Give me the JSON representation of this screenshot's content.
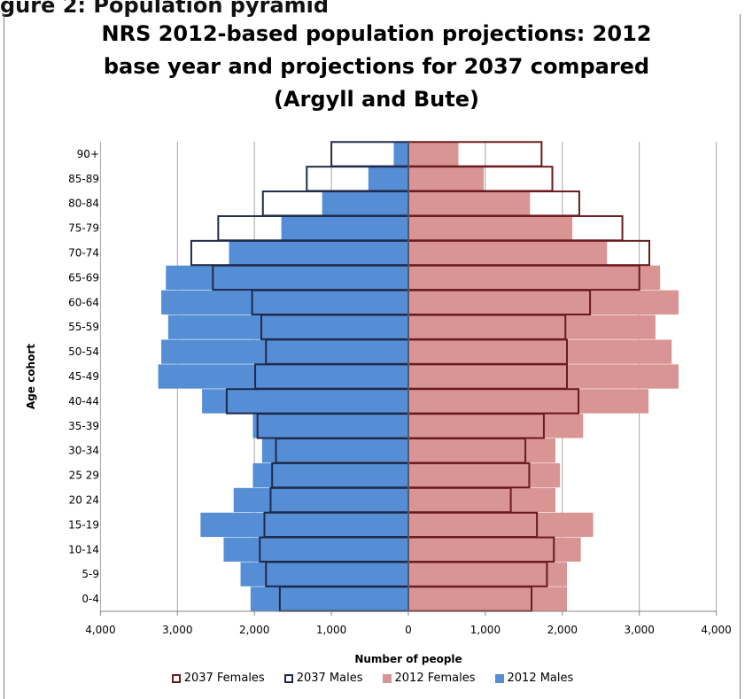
{
  "page": {
    "cut_heading": "gure 2: Population pyramid"
  },
  "chart_data": {
    "type": "bar",
    "orientation": "horizontal-pyramid",
    "title_lines": [
      "NRS 2012-based population projections: 2012",
      "base year and projections for 2037 compared",
      "(Argyll and Bute)"
    ],
    "xlabel": "Number of people",
    "ylabel": "Age cohort",
    "xlim": [
      -4000,
      4000
    ],
    "x_ticks": [
      -4000,
      -3000,
      -2000,
      -1000,
      0,
      1000,
      2000,
      3000,
      4000
    ],
    "x_tick_labels": [
      "4,000",
      "3,000",
      "2,000",
      "1,000",
      "0",
      "1,000",
      "2,000",
      "3,000",
      "4,000"
    ],
    "grid": "vertical",
    "legend_position": "bottom",
    "categories": [
      "0-4",
      "5-9",
      "10-14",
      "15-19",
      "20-24",
      "25-29",
      "30-34",
      "35-39",
      "40-44",
      "45-49",
      "50-54",
      "55-59",
      "60-64",
      "65-69",
      "70-74",
      "75-79",
      "80-84",
      "85-89",
      "90+"
    ],
    "category_labels": [
      "0-4",
      "5-9",
      "10-14",
      "15-19",
      "20 24",
      "25 29",
      "30-34",
      "35-39",
      "40-44",
      "45-49",
      "50-54",
      "55-59",
      "60-64",
      "65-69",
      "70-74",
      "75-79",
      "80-84",
      "85-89",
      "90+"
    ],
    "series": [
      {
        "name": "2037 Females",
        "side": "right",
        "style": "outline",
        "color": "#6b1a1f",
        "values": [
          1600,
          1800,
          1890,
          1670,
          1330,
          1570,
          1520,
          1760,
          2210,
          2060,
          2060,
          2040,
          2360,
          3000,
          3130,
          2780,
          2220,
          1870,
          1730
        ]
      },
      {
        "name": "2037 Males",
        "side": "left",
        "style": "outline",
        "color": "#1f2a4a",
        "values": [
          1670,
          1850,
          1930,
          1870,
          1790,
          1770,
          1720,
          1960,
          2360,
          1990,
          1850,
          1910,
          2030,
          2540,
          2820,
          2470,
          1890,
          1320,
          1000
        ]
      },
      {
        "name": "2012 Females",
        "side": "right",
        "style": "fill",
        "color": "#d99594",
        "values": [
          2060,
          2060,
          2240,
          2400,
          1910,
          1970,
          1910,
          2270,
          3120,
          3510,
          3420,
          3210,
          3510,
          3270,
          2580,
          2130,
          1580,
          980,
          650
        ]
      },
      {
        "name": "2012 Males",
        "side": "left",
        "style": "fill",
        "color": "#558ed5",
        "values": [
          2050,
          2180,
          2400,
          2700,
          2270,
          2020,
          1900,
          2020,
          2680,
          3250,
          3210,
          3120,
          3210,
          3150,
          2330,
          1650,
          1120,
          520,
          190
        ]
      }
    ],
    "legend_order": [
      "2037 Females",
      "2037 Males",
      "2012 Females",
      "2012 Males"
    ]
  }
}
